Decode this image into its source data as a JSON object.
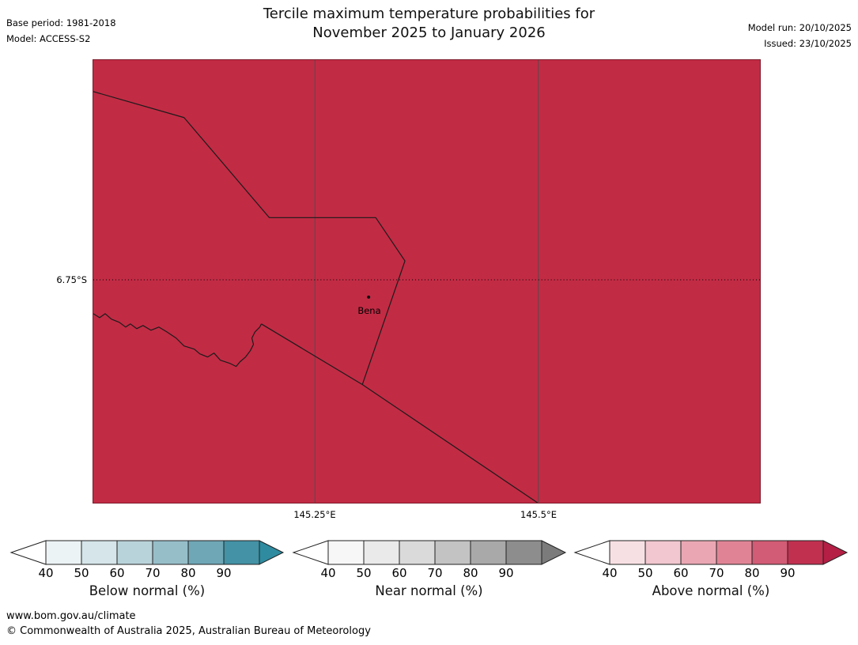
{
  "header": {
    "title_line1": "Tercile maximum temperature probabilities for",
    "title_line2": "November 2025 to January 2026",
    "base_period": "Base period: 1981-2018",
    "model": "Model: ACCESS-S2",
    "model_run": "Model run: 20/10/2025",
    "issued": "Issued: 23/10/2025"
  },
  "map": {
    "fill_color": "#c22b44",
    "boundary_color": "#1b1b1b",
    "gridline_color": "#4d4d4d",
    "lat_label": "6.75°S",
    "lon_labels": [
      "145.25°E",
      "145.5°E"
    ],
    "place": {
      "name": "Bena"
    }
  },
  "legends": [
    {
      "id": "below-normal",
      "label": "Below normal (%)",
      "ticks": [
        "40",
        "50",
        "60",
        "70",
        "80",
        "90"
      ],
      "tip_left_color": "#ffffff",
      "colors": [
        "#ecf3f4",
        "#d5e5e9",
        "#b9d3da",
        "#96bec9",
        "#6fa7b6",
        "#4392a5"
      ],
      "tip_right_color": "#2f8ba0"
    },
    {
      "id": "near-normal",
      "label": "Near normal (%)",
      "ticks": [
        "40",
        "50",
        "60",
        "70",
        "80",
        "90"
      ],
      "tip_left_color": "#ffffff",
      "colors": [
        "#f7f7f7",
        "#eaeaea",
        "#dadada",
        "#c3c3c3",
        "#a9a9a9",
        "#8d8d8d"
      ],
      "tip_right_color": "#7b7b7b"
    },
    {
      "id": "above-normal",
      "label": "Above normal (%)",
      "ticks": [
        "40",
        "50",
        "60",
        "70",
        "80",
        "90"
      ],
      "tip_left_color": "#ffffff",
      "colors": [
        "#f7e0e4",
        "#f2c7cf",
        "#eaa7b3",
        "#e08495",
        "#d25b75",
        "#c23050"
      ],
      "tip_right_color": "#b51f45"
    }
  ],
  "footer": {
    "url": "www.bom.gov.au/climate",
    "copyright": "© Commonwealth of Australia 2025, Australian Bureau of Meteorology"
  }
}
